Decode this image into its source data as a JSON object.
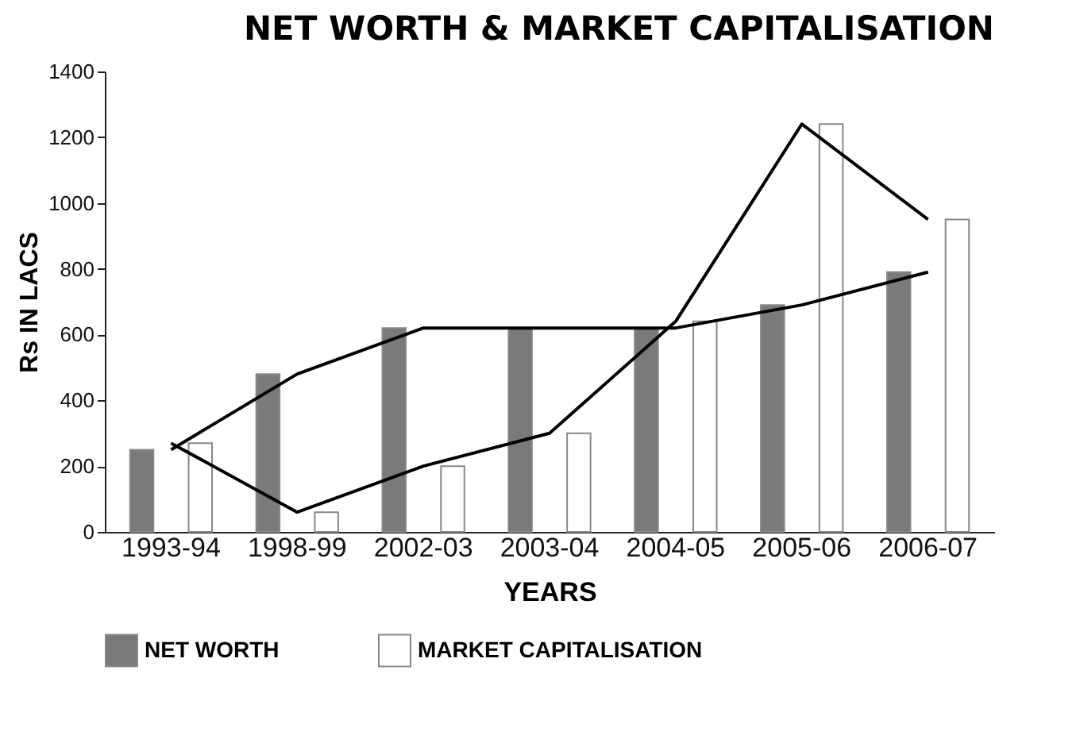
{
  "chart_data": {
    "type": "bar",
    "title": "NET WORTH & MARKET CAPITALISATION",
    "xlabel": "YEARS",
    "ylabel": "Rs IN LACS",
    "categories": [
      "1993-94",
      "1998-99",
      "2002-03",
      "2003-04",
      "2004-05",
      "2005-06",
      "2006-07"
    ],
    "series": [
      {
        "name": "NET WORTH",
        "color": "#7a7a7a",
        "values": [
          250,
          480,
          620,
          620,
          620,
          690,
          790
        ]
      },
      {
        "name": "MARKET CAPITALISATION",
        "color": "#ffffff",
        "values": [
          270,
          60,
          200,
          300,
          640,
          1240,
          950
        ]
      },
      {
        "type": "line",
        "color": "#000000",
        "values": [
          250,
          480,
          620,
          620,
          620,
          690,
          790
        ]
      },
      {
        "type": "line",
        "color": "#000000",
        "values": [
          270,
          60,
          200,
          300,
          640,
          1240,
          950
        ]
      }
    ],
    "ylim": [
      0,
      1400
    ],
    "yticks": [
      0,
      200,
      400,
      600,
      800,
      1000,
      1200,
      1400
    ],
    "legend": "bottom"
  }
}
